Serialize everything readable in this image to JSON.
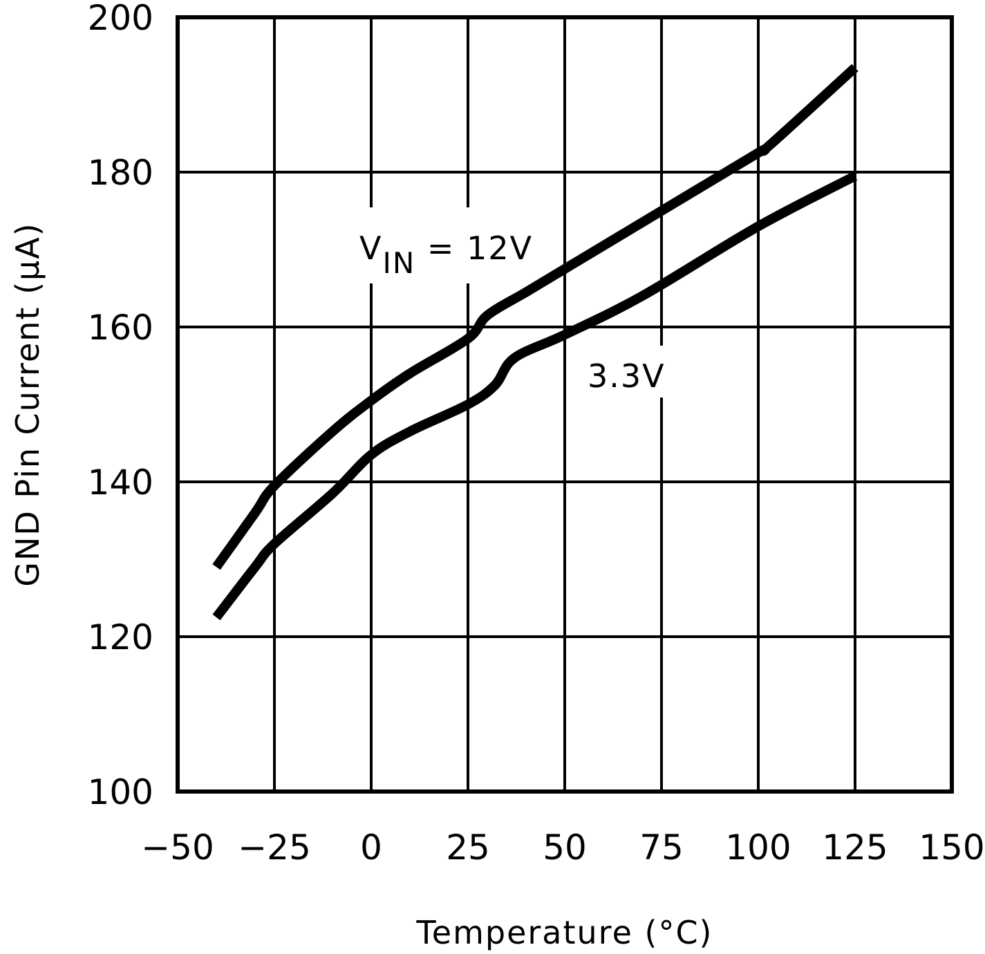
{
  "chart_data": {
    "type": "line",
    "title": "",
    "xlabel": "Temperature (°C)",
    "ylabel": "GND Pin Current (µA)",
    "xlim": [
      -50,
      150
    ],
    "ylim": [
      100,
      200
    ],
    "grid": true,
    "x_ticks": [
      "-50",
      "-25",
      "0",
      "25",
      "50",
      "75",
      "100",
      "125",
      "150"
    ],
    "y_ticks": [
      "100",
      "120",
      "140",
      "160",
      "180",
      "200"
    ],
    "series": [
      {
        "name": "VIN = 12V",
        "x": [
          -40,
          -30,
          -25,
          -10,
          0,
          10,
          25,
          30,
          40,
          50,
          75,
          100,
          103,
          125
        ],
        "values": [
          129,
          136,
          139.5,
          146.5,
          150.5,
          154,
          158.5,
          161.5,
          164.5,
          167.5,
          175,
          182.5,
          183.5,
          193.5
        ]
      },
      {
        "name": "3.3V",
        "x": [
          -40,
          -30,
          -25,
          -10,
          0,
          10,
          25,
          32,
          37,
          50,
          70,
          100,
          125
        ],
        "values": [
          122.5,
          129,
          132,
          138.5,
          143.5,
          146.5,
          150,
          152.5,
          156,
          159,
          164,
          173,
          179.5
        ]
      }
    ],
    "annotations": [
      {
        "text": "VIN = 12V",
        "main": "V",
        "sub": "IN",
        "rest": " = 12V"
      },
      {
        "text": "3.3V"
      }
    ]
  }
}
